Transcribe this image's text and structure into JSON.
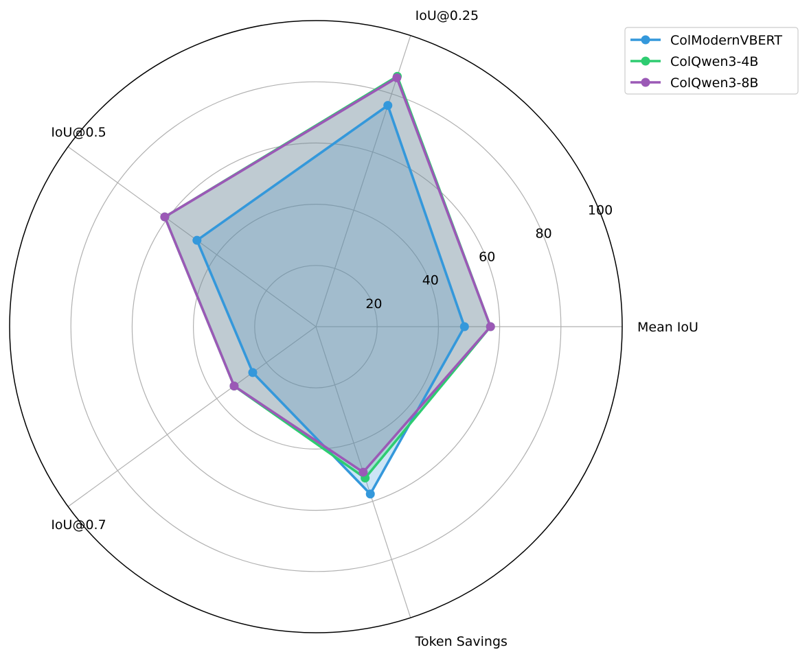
{
  "chart_data": {
    "type": "radar",
    "axes": [
      "Mean IoU",
      "IoU@0.25",
      "IoU@0.5",
      "IoU@0.7",
      "Token Savings"
    ],
    "r_ticks": [
      20,
      40,
      60,
      80,
      100
    ],
    "r_tick_labels": [
      "20",
      "40",
      "60",
      "80",
      "100"
    ],
    "rlim": [
      0,
      100
    ],
    "grid": true,
    "legend": "top-right",
    "series": [
      {
        "name": "ColModernVBERT",
        "color": "#3498db",
        "values": [
          48.5,
          76.0,
          48.0,
          25.5,
          57.5
        ]
      },
      {
        "name": "ColQwen3-4B",
        "color": "#2ecc71",
        "values": [
          57.0,
          86.0,
          61.0,
          33.0,
          52.0
        ]
      },
      {
        "name": "ColQwen3-8B",
        "color": "#9b59b6",
        "values": [
          57.0,
          85.5,
          61.0,
          33.0,
          50.0
        ]
      }
    ]
  }
}
